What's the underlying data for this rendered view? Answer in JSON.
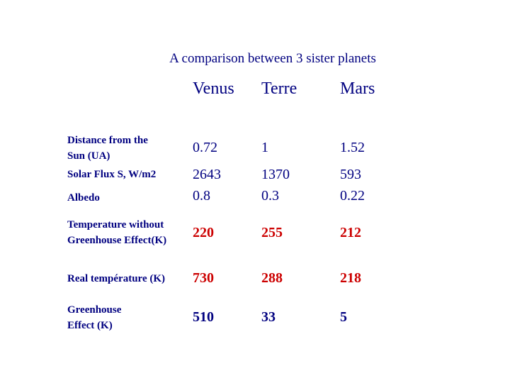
{
  "title": "A comparison between 3 sister planets",
  "table": {
    "columns": [
      "Venus",
      "Terre",
      "Mars"
    ],
    "rows": [
      {
        "label_lines": [
          "Distance from the",
          "Sun (UA)"
        ],
        "values": [
          0.72,
          1,
          1.52
        ]
      },
      {
        "label_lines": [
          "Solar Flux S, W/m2"
        ],
        "values": [
          2643,
          1370,
          593
        ]
      },
      {
        "label_lines": [
          "Albedo"
        ],
        "values": [
          0.8,
          0.3,
          0.22
        ]
      },
      {
        "label_lines": [
          "Temperature without",
          "Greenhouse Effect(K)"
        ],
        "values": [
          220,
          255,
          212
        ]
      },
      {
        "label_lines": [
          "Real température (K)"
        ],
        "values": [
          730,
          288,
          218
        ]
      },
      {
        "label_lines": [
          "Greenhouse",
          "Effect  (K)"
        ],
        "values": [
          510,
          33,
          5
        ]
      }
    ]
  }
}
